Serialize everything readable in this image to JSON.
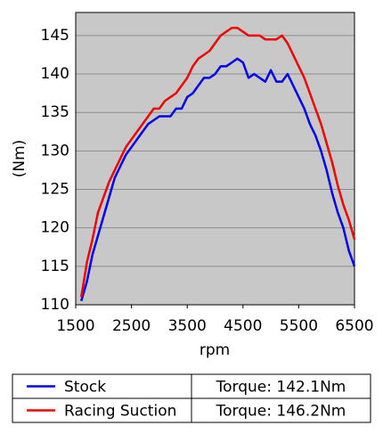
{
  "chart_data": {
    "type": "line",
    "x_label": "rpm",
    "y_label": "(Nm)",
    "x": [
      1600,
      1700,
      1800,
      1900,
      2000,
      2100,
      2200,
      2300,
      2400,
      2500,
      2600,
      2700,
      2800,
      2900,
      3000,
      3100,
      3200,
      3300,
      3400,
      3500,
      3600,
      3700,
      3800,
      3900,
      4000,
      4100,
      4200,
      4300,
      4400,
      4500,
      4600,
      4700,
      4800,
      4900,
      5000,
      5100,
      5200,
      5300,
      5400,
      5500,
      5600,
      5700,
      5800,
      5900,
      6000,
      6100,
      6200,
      6300,
      6400,
      6500
    ],
    "series": [
      {
        "name": "Stock",
        "color": "#0000ee",
        "torque": "Torque: 142.1Nm",
        "values": [
          110.5,
          113,
          116.5,
          119,
          121.5,
          124,
          126.5,
          128,
          129.5,
          130.5,
          131.5,
          132.5,
          133.5,
          134,
          134.5,
          134.5,
          134.5,
          135.5,
          135.5,
          137,
          137.5,
          138.5,
          139.5,
          139.5,
          140,
          141,
          141,
          141.5,
          142,
          141.5,
          139.5,
          140,
          139.5,
          139,
          140.5,
          139,
          139,
          140,
          138.5,
          137,
          135.5,
          133.5,
          132,
          130,
          127.5,
          124.5,
          122,
          120,
          117,
          115
        ]
      },
      {
        "name": "Racing Suction",
        "color": "#ee0000",
        "torque": "Torque: 146.2Nm",
        "values": [
          111,
          115.5,
          118.5,
          122,
          124,
          126,
          127.5,
          129,
          130.5,
          131.5,
          132.5,
          133.5,
          134.5,
          135.5,
          135.5,
          136.5,
          137,
          137.5,
          138.5,
          139.5,
          141,
          142,
          142.5,
          143,
          144,
          145,
          145.5,
          146,
          146,
          145.5,
          145,
          145,
          145,
          144.5,
          144.5,
          144.5,
          145,
          144,
          142.5,
          141,
          139.5,
          137.5,
          135.5,
          133.5,
          131,
          128.5,
          125.5,
          123,
          121,
          118.5
        ]
      }
    ],
    "xlim": [
      1500,
      6500
    ],
    "xticks": [
      1500,
      2500,
      3500,
      4500,
      5500,
      6500
    ],
    "ylim": [
      110,
      148
    ],
    "yticks": [
      110,
      115,
      120,
      125,
      130,
      135,
      140,
      145
    ],
    "grid": true,
    "background": "#c8c8c8"
  }
}
